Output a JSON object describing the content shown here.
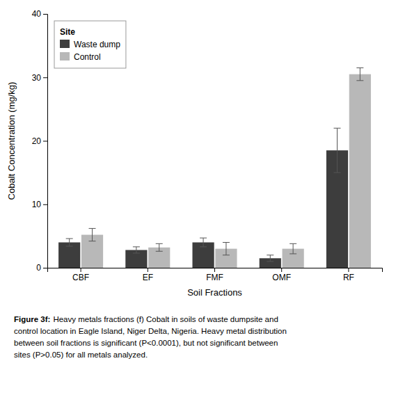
{
  "chart_data": {
    "type": "bar",
    "categories": [
      "CBF",
      "EF",
      "FMF",
      "OMF",
      "RF"
    ],
    "series": [
      {
        "name": "Waste dump",
        "color": "#3d3d3d",
        "values": [
          4.0,
          2.8,
          4.0,
          1.5,
          18.5
        ],
        "errors": [
          0.6,
          0.5,
          0.7,
          0.5,
          3.5
        ]
      },
      {
        "name": "Control",
        "color": "#b8b8b8",
        "values": [
          5.2,
          3.2,
          3.0,
          3.0,
          30.5
        ],
        "errors": [
          1.0,
          0.6,
          1.0,
          0.8,
          1.0
        ]
      }
    ],
    "ylabel": "Cobalt Concentration (mg/kg)",
    "xlabel": "Soil Fractions",
    "legend_title": "Site",
    "legend": "top-left",
    "grid": false,
    "ylim": [
      0,
      40
    ],
    "yticks": [
      0,
      10,
      20,
      30,
      40
    ],
    "annotations": [
      "Figure 3f:",
      "Heavy metals fractions (f) Cobalt in soils of waste dumpsite and",
      "control location in Eagle Island, Niger Delta, Nigeria. Heavy metal distribution",
      "between soil fractions is significant (P<0.0001), but not significant between",
      "sites (P>0.05) for all metals analyzed."
    ]
  }
}
